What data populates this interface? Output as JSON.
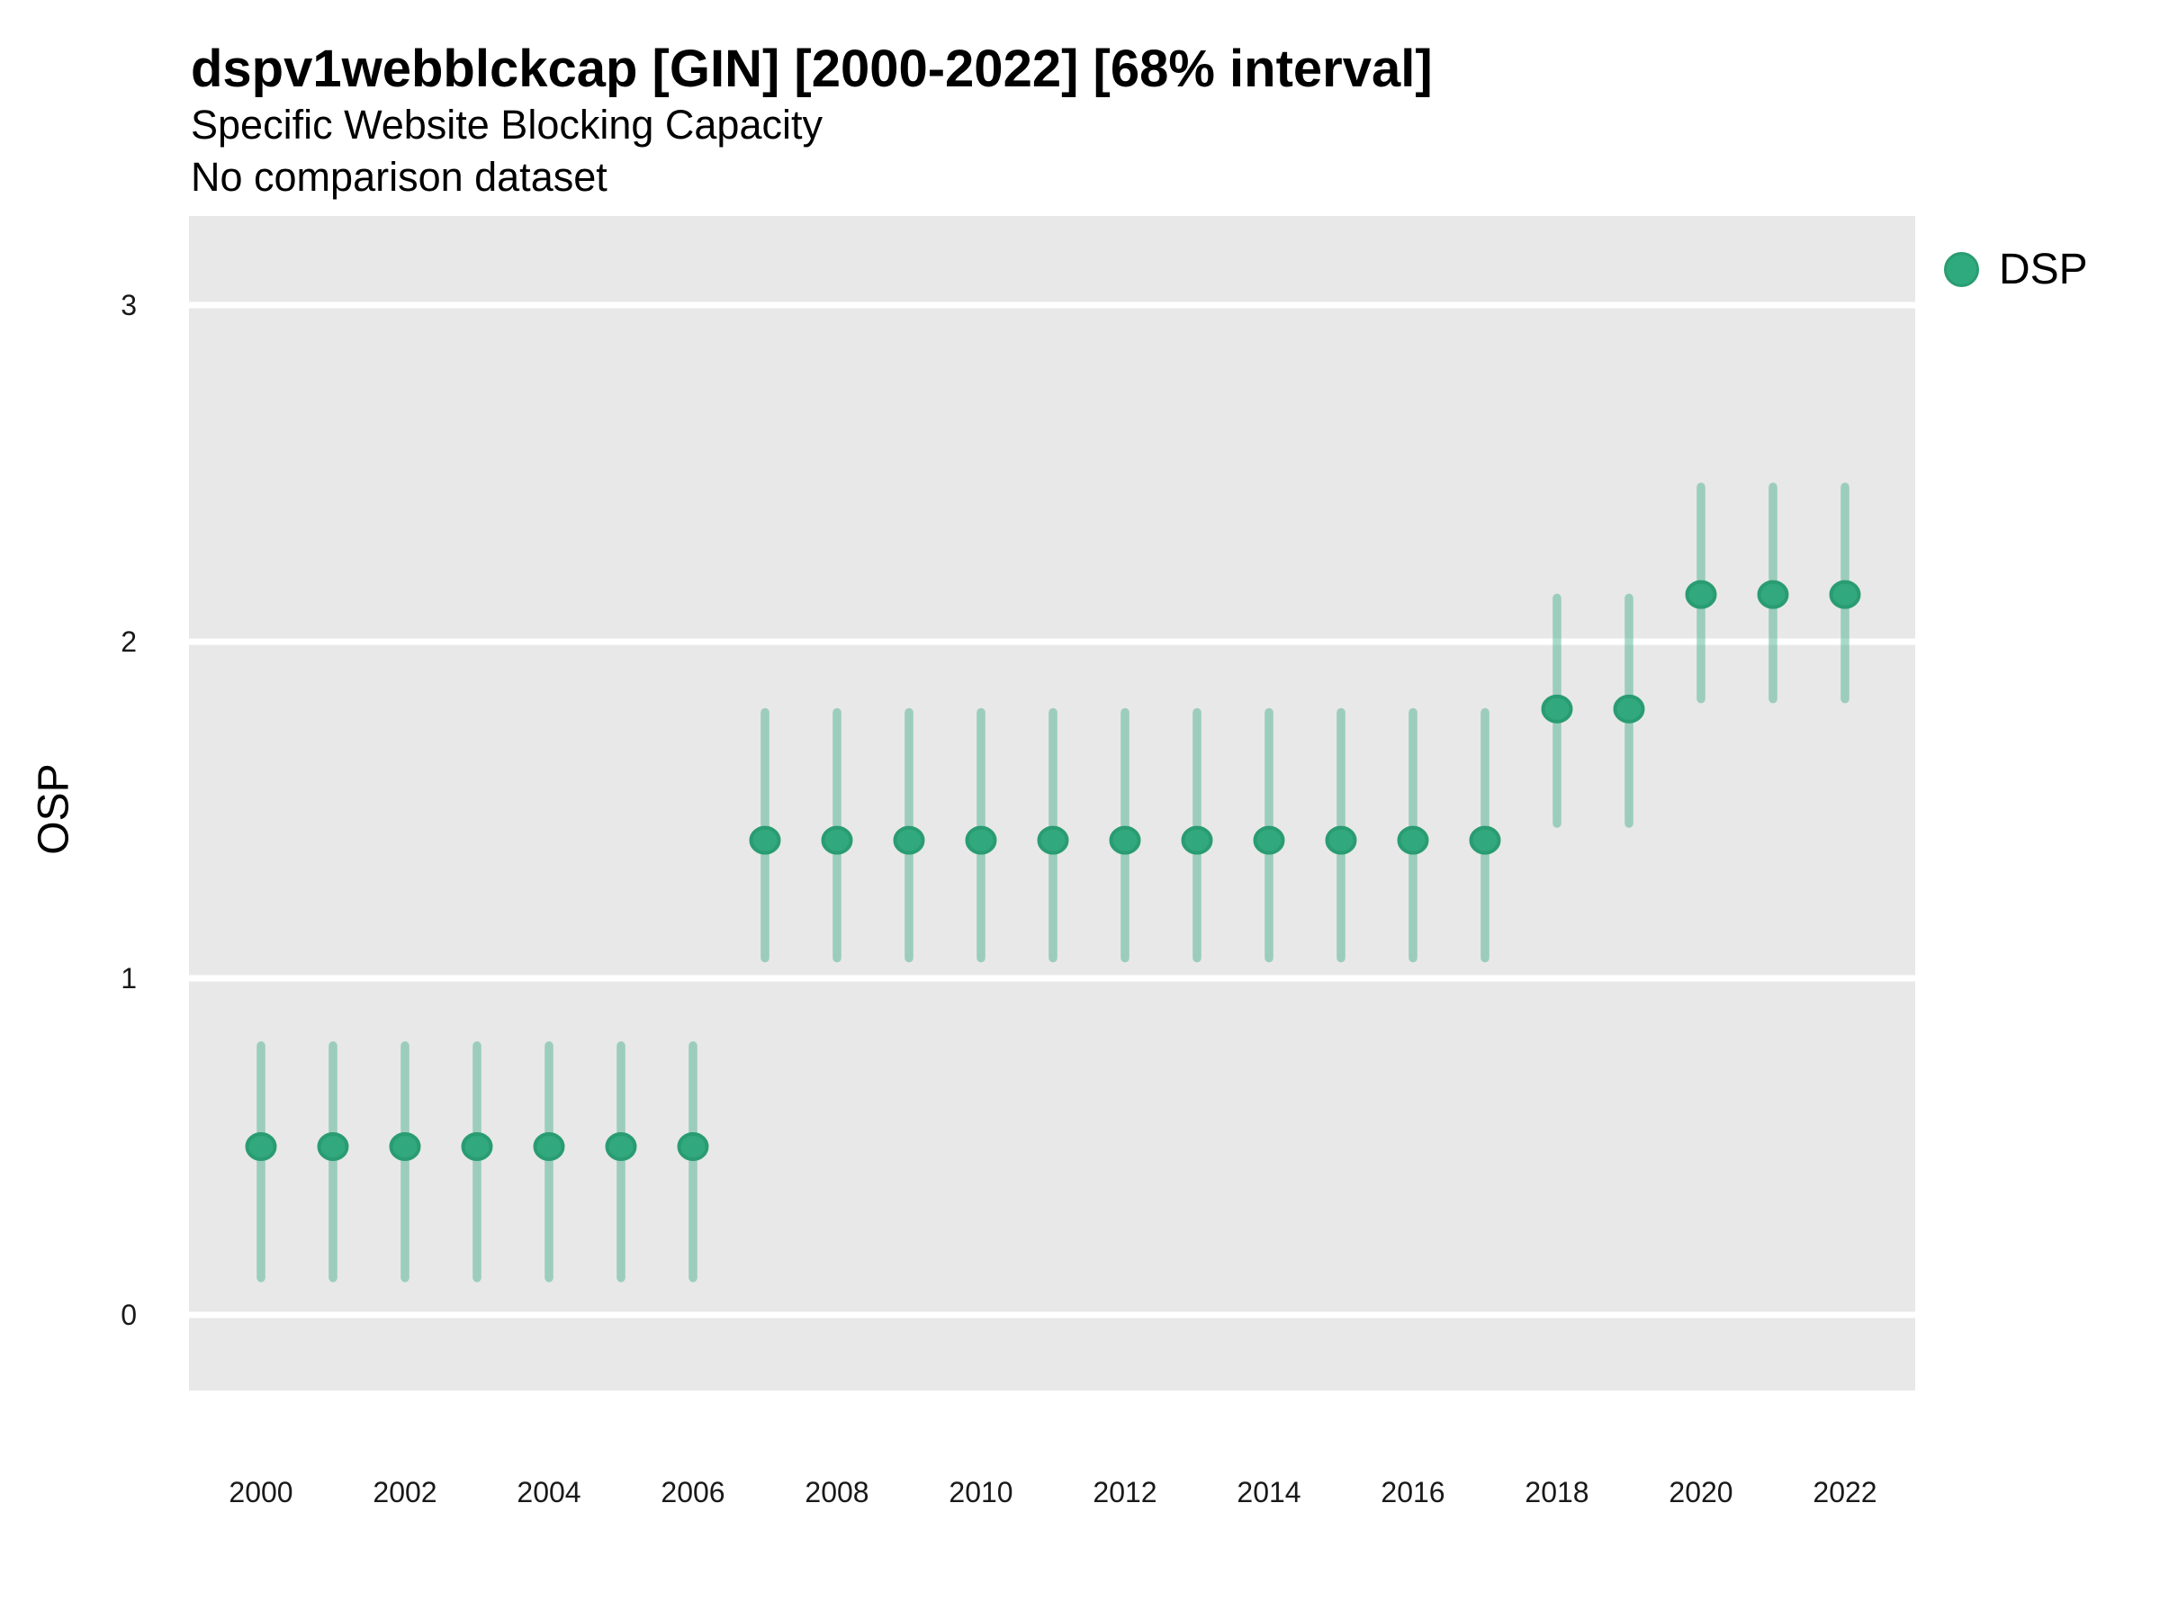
{
  "header": {
    "title": "dspv1webblckcap [GIN] [2000-2022] [68% interval]",
    "subtitle": "Specific Website Blocking Capacity",
    "note": "No comparison dataset"
  },
  "legend": {
    "position": "right",
    "label": "DSP"
  },
  "axes": {
    "y_label": "OSP",
    "y_ticks": [
      0,
      1,
      2,
      3
    ],
    "x_ticks": [
      2000,
      2002,
      2004,
      2006,
      2008,
      2010,
      2012,
      2014,
      2016,
      2018,
      2020,
      2022
    ]
  },
  "colors": {
    "point_fill": "#31a87e",
    "point_stroke": "#2a9c72",
    "errorbar": "rgba(49,168,126,0.42)",
    "panel_bg": "#e8e8e8",
    "gridline": "#ffffff",
    "text": "#191919",
    "legend_marker": "#2faa7e"
  },
  "chart_data": {
    "type": "pointrange",
    "title": "dspv1webblckcap [GIN] [2000-2022] [68% interval]",
    "subtitle": "Specific Website Blocking Capacity",
    "note": "No comparison dataset",
    "xlabel": "",
    "ylabel": "OSP",
    "xlim": [
      1999,
      2023
    ],
    "ylim": [
      -0.22,
      3.27
    ],
    "grid": "horizontal-major-only",
    "legend_position": "right",
    "interval_level": "68%",
    "series": [
      {
        "name": "DSP",
        "points": [
          {
            "year": 2000,
            "y": 0.5,
            "lo": 0.11,
            "hi": 0.8
          },
          {
            "year": 2001,
            "y": 0.5,
            "lo": 0.11,
            "hi": 0.8
          },
          {
            "year": 2002,
            "y": 0.5,
            "lo": 0.11,
            "hi": 0.8
          },
          {
            "year": 2003,
            "y": 0.5,
            "lo": 0.11,
            "hi": 0.8
          },
          {
            "year": 2004,
            "y": 0.5,
            "lo": 0.11,
            "hi": 0.8
          },
          {
            "year": 2005,
            "y": 0.5,
            "lo": 0.11,
            "hi": 0.8
          },
          {
            "year": 2006,
            "y": 0.5,
            "lo": 0.11,
            "hi": 0.8
          },
          {
            "year": 2007,
            "y": 1.41,
            "lo": 1.06,
            "hi": 1.79
          },
          {
            "year": 2008,
            "y": 1.41,
            "lo": 1.06,
            "hi": 1.79
          },
          {
            "year": 2009,
            "y": 1.41,
            "lo": 1.06,
            "hi": 1.79
          },
          {
            "year": 2010,
            "y": 1.41,
            "lo": 1.06,
            "hi": 1.79
          },
          {
            "year": 2011,
            "y": 1.41,
            "lo": 1.06,
            "hi": 1.79
          },
          {
            "year": 2012,
            "y": 1.41,
            "lo": 1.06,
            "hi": 1.79
          },
          {
            "year": 2013,
            "y": 1.41,
            "lo": 1.06,
            "hi": 1.79
          },
          {
            "year": 2014,
            "y": 1.41,
            "lo": 1.06,
            "hi": 1.79
          },
          {
            "year": 2015,
            "y": 1.41,
            "lo": 1.06,
            "hi": 1.79
          },
          {
            "year": 2016,
            "y": 1.41,
            "lo": 1.06,
            "hi": 1.79
          },
          {
            "year": 2017,
            "y": 1.41,
            "lo": 1.06,
            "hi": 1.79
          },
          {
            "year": 2018,
            "y": 1.8,
            "lo": 1.46,
            "hi": 2.13
          },
          {
            "year": 2019,
            "y": 1.8,
            "lo": 1.46,
            "hi": 2.13
          },
          {
            "year": 2020,
            "y": 2.14,
            "lo": 1.83,
            "hi": 2.46
          },
          {
            "year": 2021,
            "y": 2.14,
            "lo": 1.83,
            "hi": 2.46
          },
          {
            "year": 2022,
            "y": 2.14,
            "lo": 1.83,
            "hi": 2.46
          }
        ]
      }
    ]
  }
}
